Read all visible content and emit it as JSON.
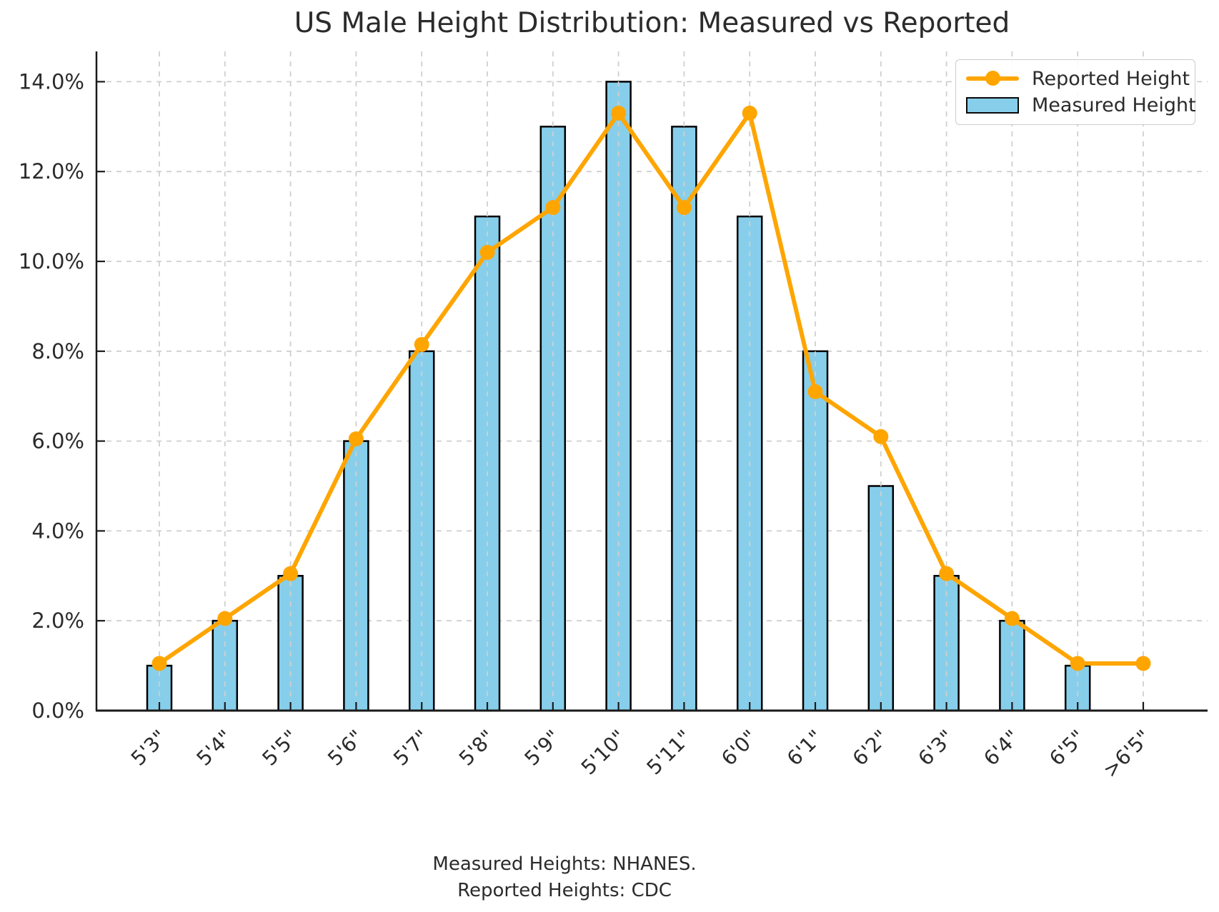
{
  "title": "US Male Height Distribution: Measured vs Reported",
  "legend": {
    "items": [
      {
        "label": "Reported Height",
        "marker": "line"
      },
      {
        "label": "Measured Height",
        "marker": "bar"
      }
    ]
  },
  "footer": {
    "line1": "Measured Heights: NHANES.",
    "line2": "Reported Heights: CDC"
  },
  "colors": {
    "bar_fill": "#87CEEB",
    "bar_edge": "#000000",
    "line": "#FFA500",
    "grid": "#cfcfcf",
    "spine": "#1a1a1a",
    "tick": "#1a1a1a",
    "text": "#2b2b2b",
    "legend_border": "#cccccc",
    "background": "#ffffff"
  },
  "chart_data": {
    "type": "bar",
    "title": "US Male Height Distribution: Measured vs Reported",
    "categories": [
      "5'3\"",
      "5'4\"",
      "5'5\"",
      "5'6\"",
      "5'7\"",
      "5'8\"",
      "5'9\"",
      "5'10\"",
      "5'11\"",
      "6'0\"",
      "6'1\"",
      "6'2\"",
      "6'3\"",
      "6'4\"",
      "6'5\"",
      ">6'5\""
    ],
    "series": [
      {
        "name": "Measured Height",
        "type": "bar",
        "color": "#87CEEB",
        "values": [
          1.0,
          2.0,
          3.0,
          6.0,
          8.0,
          11.0,
          13.0,
          14.0,
          13.0,
          11.0,
          8.0,
          5.0,
          3.0,
          2.0,
          1.0,
          0.0
        ]
      },
      {
        "name": "Reported Height",
        "type": "line",
        "color": "#FFA500",
        "values": [
          1.05,
          2.05,
          3.05,
          6.05,
          8.15,
          10.2,
          11.2,
          13.3,
          11.2,
          13.3,
          7.1,
          6.1,
          3.05,
          2.05,
          1.05,
          1.05
        ]
      }
    ],
    "xlabel": "",
    "ylabel": "",
    "ylim": [
      0,
      14.7
    ],
    "yticks": [
      {
        "value": 0,
        "label": "0.0%"
      },
      {
        "value": 2,
        "label": "2.0%"
      },
      {
        "value": 4,
        "label": "4.0%"
      },
      {
        "value": 6,
        "label": "6.0%"
      },
      {
        "value": 8,
        "label": "8.0%"
      },
      {
        "value": 10,
        "label": "10.0%"
      },
      {
        "value": 12,
        "label": "12.0%"
      },
      {
        "value": 14,
        "label": "14.0%"
      }
    ],
    "grid": true,
    "grid_style": "dashed",
    "legend_position": "upper right",
    "annotations": [
      "Measured Heights: NHANES.",
      "Reported Heights: CDC"
    ]
  }
}
